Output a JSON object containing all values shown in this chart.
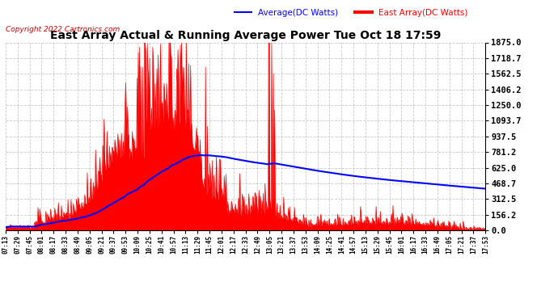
{
  "title": "East Array Actual & Running Average Power Tue Oct 18 17:59",
  "copyright": "Copyright 2022 Cartronics.com",
  "legend_avg": "Average(DC Watts)",
  "legend_east": "East Array(DC Watts)",
  "ylabel_right_ticks": [
    0.0,
    156.2,
    312.5,
    468.7,
    625.0,
    781.2,
    937.5,
    1093.7,
    1250.0,
    1406.2,
    1562.5,
    1718.7,
    1875.0
  ],
  "ylim": [
    0,
    1875.0
  ],
  "background_color": "#ffffff",
  "plot_bg_color": "#ffffff",
  "grid_color": "#bbbbbb",
  "title_color": "#000000",
  "avg_line_color": "#0000ff",
  "east_fill_color": "#ff0000",
  "east_line_color": "#ff0000",
  "copyright_color": "#cc0000",
  "x_tick_labels": [
    "07:13",
    "07:29",
    "07:45",
    "08:01",
    "08:17",
    "08:33",
    "08:49",
    "09:05",
    "09:21",
    "09:37",
    "09:53",
    "10:09",
    "10:25",
    "10:41",
    "10:57",
    "11:13",
    "11:29",
    "11:45",
    "12:01",
    "12:17",
    "12:33",
    "12:49",
    "13:05",
    "13:21",
    "13:37",
    "13:53",
    "14:09",
    "14:25",
    "14:41",
    "14:57",
    "15:13",
    "15:29",
    "15:45",
    "16:01",
    "16:17",
    "16:33",
    "16:49",
    "17:05",
    "17:21",
    "17:37",
    "17:53"
  ]
}
